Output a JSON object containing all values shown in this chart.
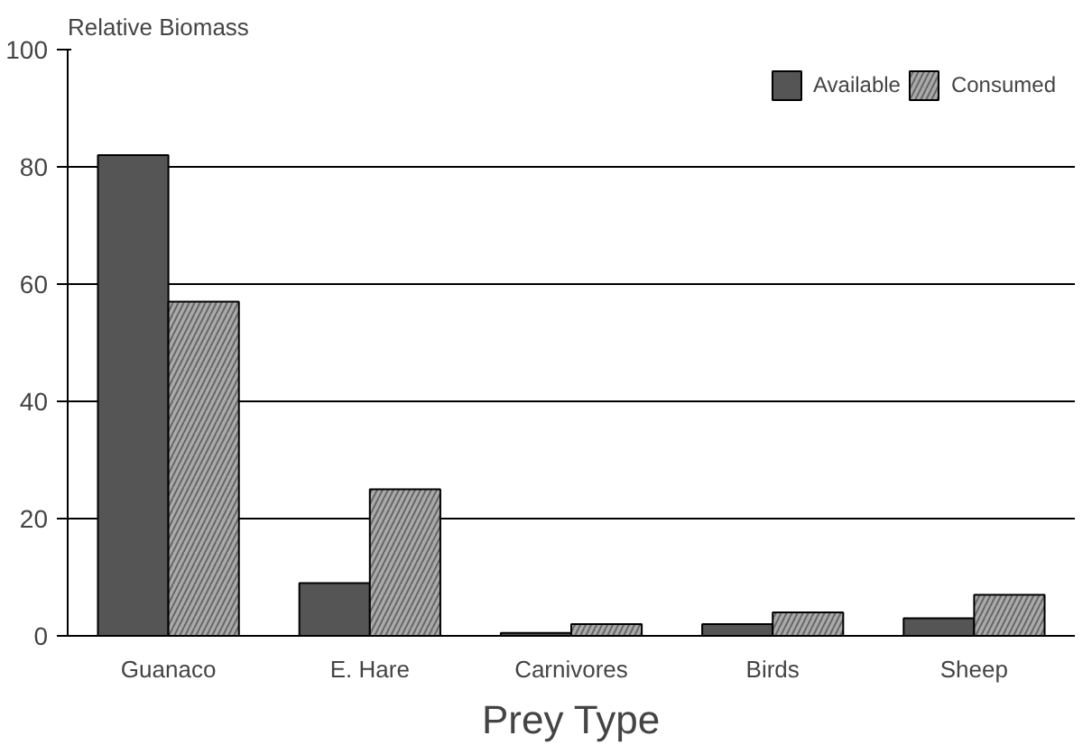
{
  "chart_data": {
    "type": "bar",
    "ylabel": "Relative Biomass",
    "xlabel": "Prey Type",
    "categories": [
      "Guanaco",
      "E. Hare",
      "Carnivores",
      "Birds",
      "Sheep"
    ],
    "series": [
      {
        "name": "Available",
        "color": "#555555",
        "values": [
          82,
          9,
          0.5,
          2,
          3
        ]
      },
      {
        "name": "Consumed",
        "color": "#aaaaaa",
        "values": [
          57,
          25,
          2,
          4,
          7
        ]
      }
    ],
    "ylim": [
      0,
      100
    ],
    "yticks": [
      0,
      20,
      40,
      60,
      80,
      100
    ],
    "grid": "y",
    "legend": "top right"
  }
}
